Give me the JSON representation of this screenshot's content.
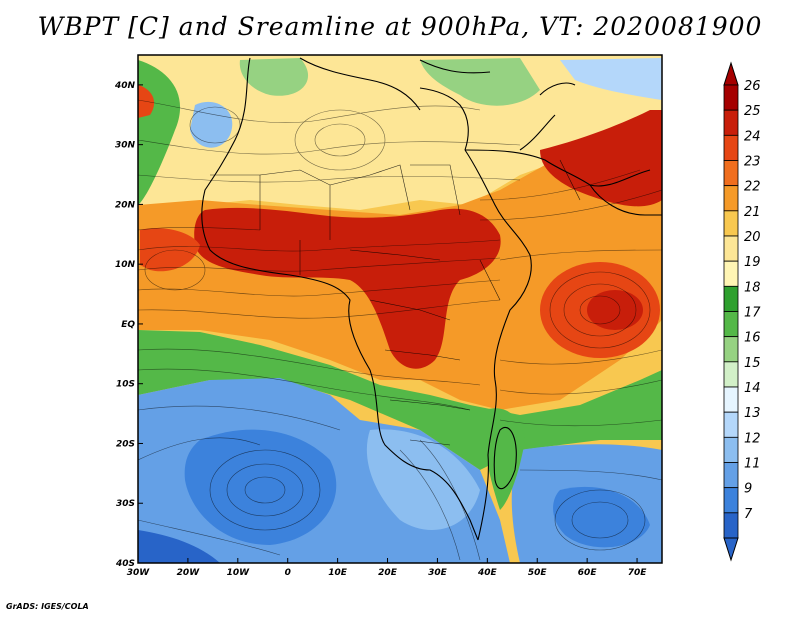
{
  "title": "WBPT [C] and Sreamline at 900hPa, VT: 2020081900",
  "credit": "GrADS: IGES/COLA",
  "map": {
    "lon_range": [
      -30,
      75
    ],
    "lat_range": [
      -40,
      45
    ],
    "lon_ticks": [
      {
        "value": -30,
        "label": "30W"
      },
      {
        "value": -20,
        "label": "20W"
      },
      {
        "value": -10,
        "label": "10W"
      },
      {
        "value": 0,
        "label": "0"
      },
      {
        "value": 10,
        "label": "10E"
      },
      {
        "value": 20,
        "label": "20E"
      },
      {
        "value": 30,
        "label": "30E"
      },
      {
        "value": 40,
        "label": "40E"
      },
      {
        "value": 50,
        "label": "50E"
      },
      {
        "value": 60,
        "label": "60E"
      },
      {
        "value": 70,
        "label": "70E"
      }
    ],
    "lat_ticks": [
      {
        "value": 40,
        "label": "40N"
      },
      {
        "value": 30,
        "label": "30N"
      },
      {
        "value": 20,
        "label": "20N"
      },
      {
        "value": 10,
        "label": "10N"
      },
      {
        "value": 0,
        "label": "EQ"
      },
      {
        "value": -10,
        "label": "10S"
      },
      {
        "value": -20,
        "label": "20S"
      },
      {
        "value": -30,
        "label": "30S"
      },
      {
        "value": -40,
        "label": "40S"
      }
    ]
  },
  "colorbar": {
    "labels": [
      "26",
      "25",
      "24",
      "23",
      "22",
      "21",
      "20",
      "19",
      "18",
      "17",
      "16",
      "15",
      "14",
      "13",
      "12",
      "11",
      "9",
      "7"
    ],
    "colors": [
      "#a50000",
      "#c81e0a",
      "#e64614",
      "#f06e1e",
      "#f59a28",
      "#f8c850",
      "#fde696",
      "#fff5b4",
      "#2ea02e",
      "#54b848",
      "#96d282",
      "#d2f0c8",
      "#e6f5ff",
      "#b4d7fa",
      "#8cbef0",
      "#64a0e6",
      "#3c82dc",
      "#2864c8"
    ]
  },
  "field_regions": [
    {
      "name": "background",
      "color": "#f8c850"
    },
    {
      "name": "southern-ocean-cool",
      "color": "#64a0e6"
    },
    {
      "name": "southern-ocean-cold",
      "color": "#3c82dc"
    },
    {
      "name": "green-band-south",
      "color": "#54b848"
    },
    {
      "name": "sahel-hot",
      "color": "#c81e0a"
    },
    {
      "name": "arabia-hot",
      "color": "#c81e0a"
    },
    {
      "name": "arabian-sea-warm",
      "color": "#e64614"
    }
  ]
}
